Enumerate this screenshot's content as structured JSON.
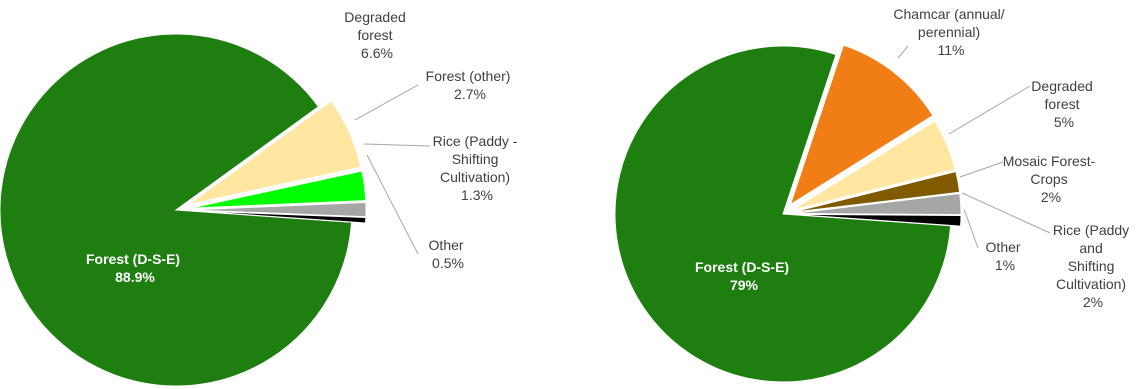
{
  "chart_data": [
    {
      "type": "pie",
      "title": "",
      "slices": [
        {
          "label": "Forest (D-S-E)",
          "value": 88.9,
          "display": "88.9%",
          "color": "#1e7f10"
        },
        {
          "label": "Degraded forest",
          "value": 6.6,
          "display": "6.6%",
          "color": "#ffe6a1"
        },
        {
          "label": "Forest (other)",
          "value": 2.7,
          "display": "2.7%",
          "color": "#00ff00"
        },
        {
          "label": "Rice (Paddy - Shifting Cultivation)",
          "value": 1.3,
          "display": "1.3%",
          "color": "#a6a6a6"
        },
        {
          "label": "Other",
          "value": 0.5,
          "display": "0.5%",
          "color": "#000000"
        }
      ]
    },
    {
      "type": "pie",
      "title": "",
      "slices": [
        {
          "label": "Forest (D-S-E)",
          "value": 79,
          "display": "79%",
          "color": "#1e7f10"
        },
        {
          "label": "Chamcar (annual/ perennial)",
          "value": 11,
          "display": "11%",
          "color": "#f07d16"
        },
        {
          "label": "Degraded forest",
          "value": 5,
          "display": "5%",
          "color": "#ffe6a1"
        },
        {
          "label": "Mosaic Forest-Crops",
          "value": 2,
          "display": "2%",
          "color": "#7f5a00"
        },
        {
          "label": "Rice (Paddy and Shifting Cultivation)",
          "value": 2,
          "display": "2%",
          "color": "#a6a6a6"
        },
        {
          "label": "Other",
          "value": 1,
          "display": "1%",
          "color": "#000000"
        }
      ]
    }
  ],
  "labels": {
    "left": [
      {
        "lines": [
          "Forest (D-S-E)"
        ],
        "value": "88.9%"
      },
      {
        "lines": [
          "Degraded",
          "forest"
        ],
        "value": "6.6%"
      },
      {
        "lines": [
          "Forest (other)"
        ],
        "value": "2.7%"
      },
      {
        "lines": [
          "Rice (Paddy -",
          "Shifting",
          "Cultivation)"
        ],
        "value": "1.3%"
      },
      {
        "lines": [
          "Other"
        ],
        "value": "0.5%"
      }
    ],
    "right": [
      {
        "lines": [
          "Forest (D-S-E)"
        ],
        "value": "79%"
      },
      {
        "lines": [
          "Chamcar (annual/",
          "perennial)"
        ],
        "value": "11%"
      },
      {
        "lines": [
          "Degraded",
          "forest"
        ],
        "value": "5%"
      },
      {
        "lines": [
          "Mosaic Forest-",
          "Crops"
        ],
        "value": "2%"
      },
      {
        "lines": [
          "Rice (Paddy",
          "and",
          "Shifting",
          "Cultivation)"
        ],
        "value": "2%"
      },
      {
        "lines": [
          "Other"
        ],
        "value": "1%"
      }
    ]
  }
}
